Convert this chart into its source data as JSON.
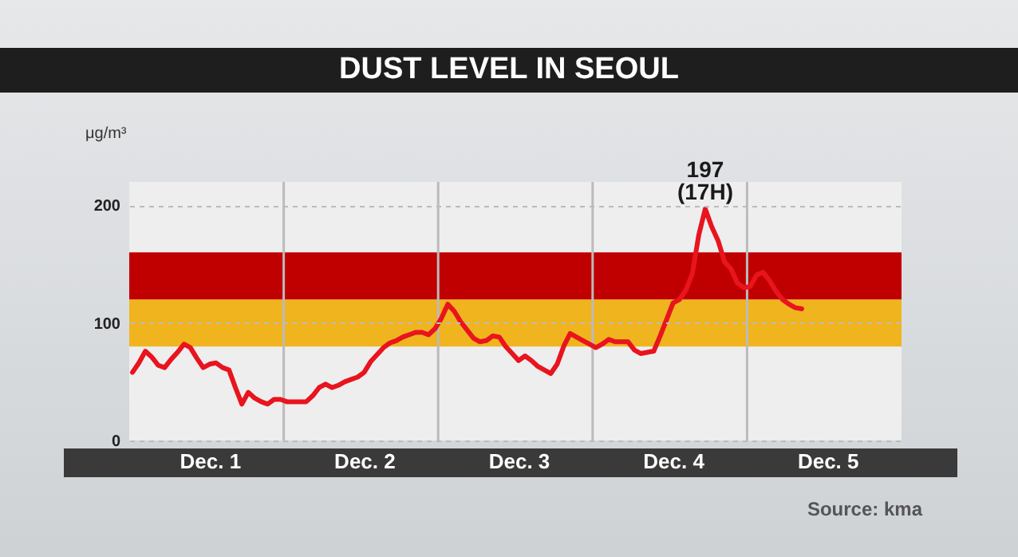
{
  "chart_data": {
    "type": "line",
    "title": "DUST LEVEL IN SEOUL",
    "ylabel": "μg/m³",
    "categories": [
      null,
      null,
      null,
      null,
      null,
      null,
      null,
      null,
      null,
      null,
      null,
      null,
      "Dec. 1",
      null,
      null,
      null,
      null,
      null,
      null,
      null,
      null,
      null,
      null,
      null,
      null,
      null,
      null,
      null,
      null,
      null,
      null,
      null,
      null,
      null,
      null,
      null,
      "Dec. 2",
      null,
      null,
      null,
      null,
      null,
      null,
      null,
      null,
      null,
      null,
      null,
      null,
      null,
      null,
      null,
      null,
      null,
      null,
      null,
      null,
      null,
      null,
      null,
      "Dec. 3",
      null,
      null,
      null,
      null,
      null,
      null,
      null,
      null,
      null,
      null,
      null,
      null,
      null,
      null,
      null,
      null,
      null,
      null,
      null,
      null,
      null,
      null,
      null,
      "Dec. 4",
      null,
      null,
      null,
      null,
      null,
      null,
      null,
      null,
      null,
      null,
      null,
      null,
      null,
      null,
      null,
      null,
      null,
      null,
      null,
      null,
      null,
      null,
      null,
      "Dec. 5",
      null,
      null,
      null,
      null,
      null,
      null,
      null,
      null,
      null,
      null,
      null
    ],
    "values": [
      58,
      66,
      76,
      71,
      64,
      62,
      69,
      75,
      82,
      79,
      70,
      62,
      65,
      66,
      62,
      60,
      45,
      31,
      41,
      36,
      33,
      31,
      35,
      35,
      33,
      33,
      33,
      33,
      38,
      45,
      48,
      45,
      47,
      50,
      52,
      54,
      58,
      67,
      73,
      79,
      83,
      85,
      88,
      90,
      92,
      92,
      90,
      95,
      104,
      116,
      110,
      101,
      94,
      87,
      84,
      85,
      89,
      88,
      80,
      74,
      68,
      72,
      68,
      63,
      60,
      57,
      65,
      80,
      91,
      88,
      85,
      82,
      79,
      82,
      86,
      84,
      84,
      84,
      77,
      74,
      75,
      76,
      89,
      103,
      117,
      120,
      128,
      142,
      175,
      197,
      182,
      170,
      152,
      146,
      134,
      130,
      131,
      141,
      143,
      136,
      127,
      120,
      116,
      113,
      112,
      null,
      null,
      null,
      null,
      null,
      null,
      null,
      null,
      null,
      null,
      null,
      null,
      null,
      null,
      null
    ],
    "color": "#e8141e",
    "ylim": [
      0,
      220
    ],
    "yticks": [
      0,
      100,
      200
    ],
    "grid": "y",
    "bands": [
      {
        "axis": "y",
        "from": 80,
        "to": 120,
        "color": "#f0b41e"
      },
      {
        "axis": "y",
        "from": 120,
        "to": 160,
        "color": "#c00000"
      }
    ],
    "annotations": [
      {
        "text": "197 (17H)",
        "y": 197
      },
      "Source: kma"
    ]
  }
}
